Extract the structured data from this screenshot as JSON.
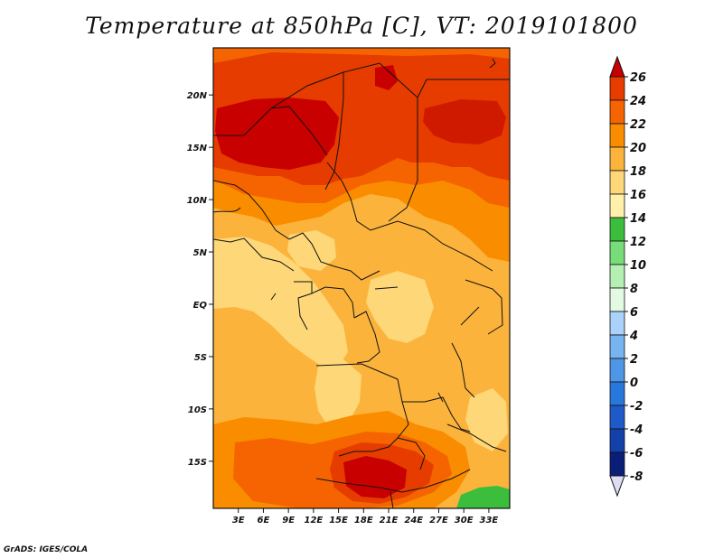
{
  "title": "Temperature at 850hPa [C], VT: 2019101800",
  "footer": "GrADS: IGES/COLA",
  "map": {
    "lon_range": [
      0,
      35.5
    ],
    "lat_range": [
      -19.5,
      24.5
    ],
    "lon_ticks": [
      "3E",
      "6E",
      "9E",
      "12E",
      "15E",
      "18E",
      "21E",
      "24E",
      "27E",
      "30E",
      "33E"
    ],
    "lat_ticks": [
      "20N",
      "15N",
      "10N",
      "5N",
      "EQ",
      "5S",
      "10S",
      "15S"
    ],
    "lon_tick_values": [
      3,
      6,
      9,
      12,
      15,
      18,
      21,
      24,
      27,
      30,
      33
    ],
    "lat_tick_values": [
      20,
      15,
      10,
      5,
      0,
      -5,
      -10,
      -15
    ]
  },
  "colorbar": {
    "levels": [
      "26",
      "24",
      "22",
      "20",
      "18",
      "16",
      "14",
      "12",
      "10",
      "8",
      "6",
      "4",
      "2",
      "0",
      "-2",
      "-4",
      "-6",
      "-8"
    ],
    "colors": [
      "#c80000",
      "#e63c00",
      "#f56400",
      "#fa8c00",
      "#fbb33c",
      "#fdd778",
      "#fff0aa",
      "#3cbe3c",
      "#78dc78",
      "#b4f0b4",
      "#e1fae1",
      "#aad2fa",
      "#78b4f0",
      "#5096e6",
      "#2878dc",
      "#1e5ac8",
      "#1440aa",
      "#0a1e78"
    ],
    "top_arrow_color": "#c80000",
    "bottom_arrow_color": "#dcdcf5"
  }
}
